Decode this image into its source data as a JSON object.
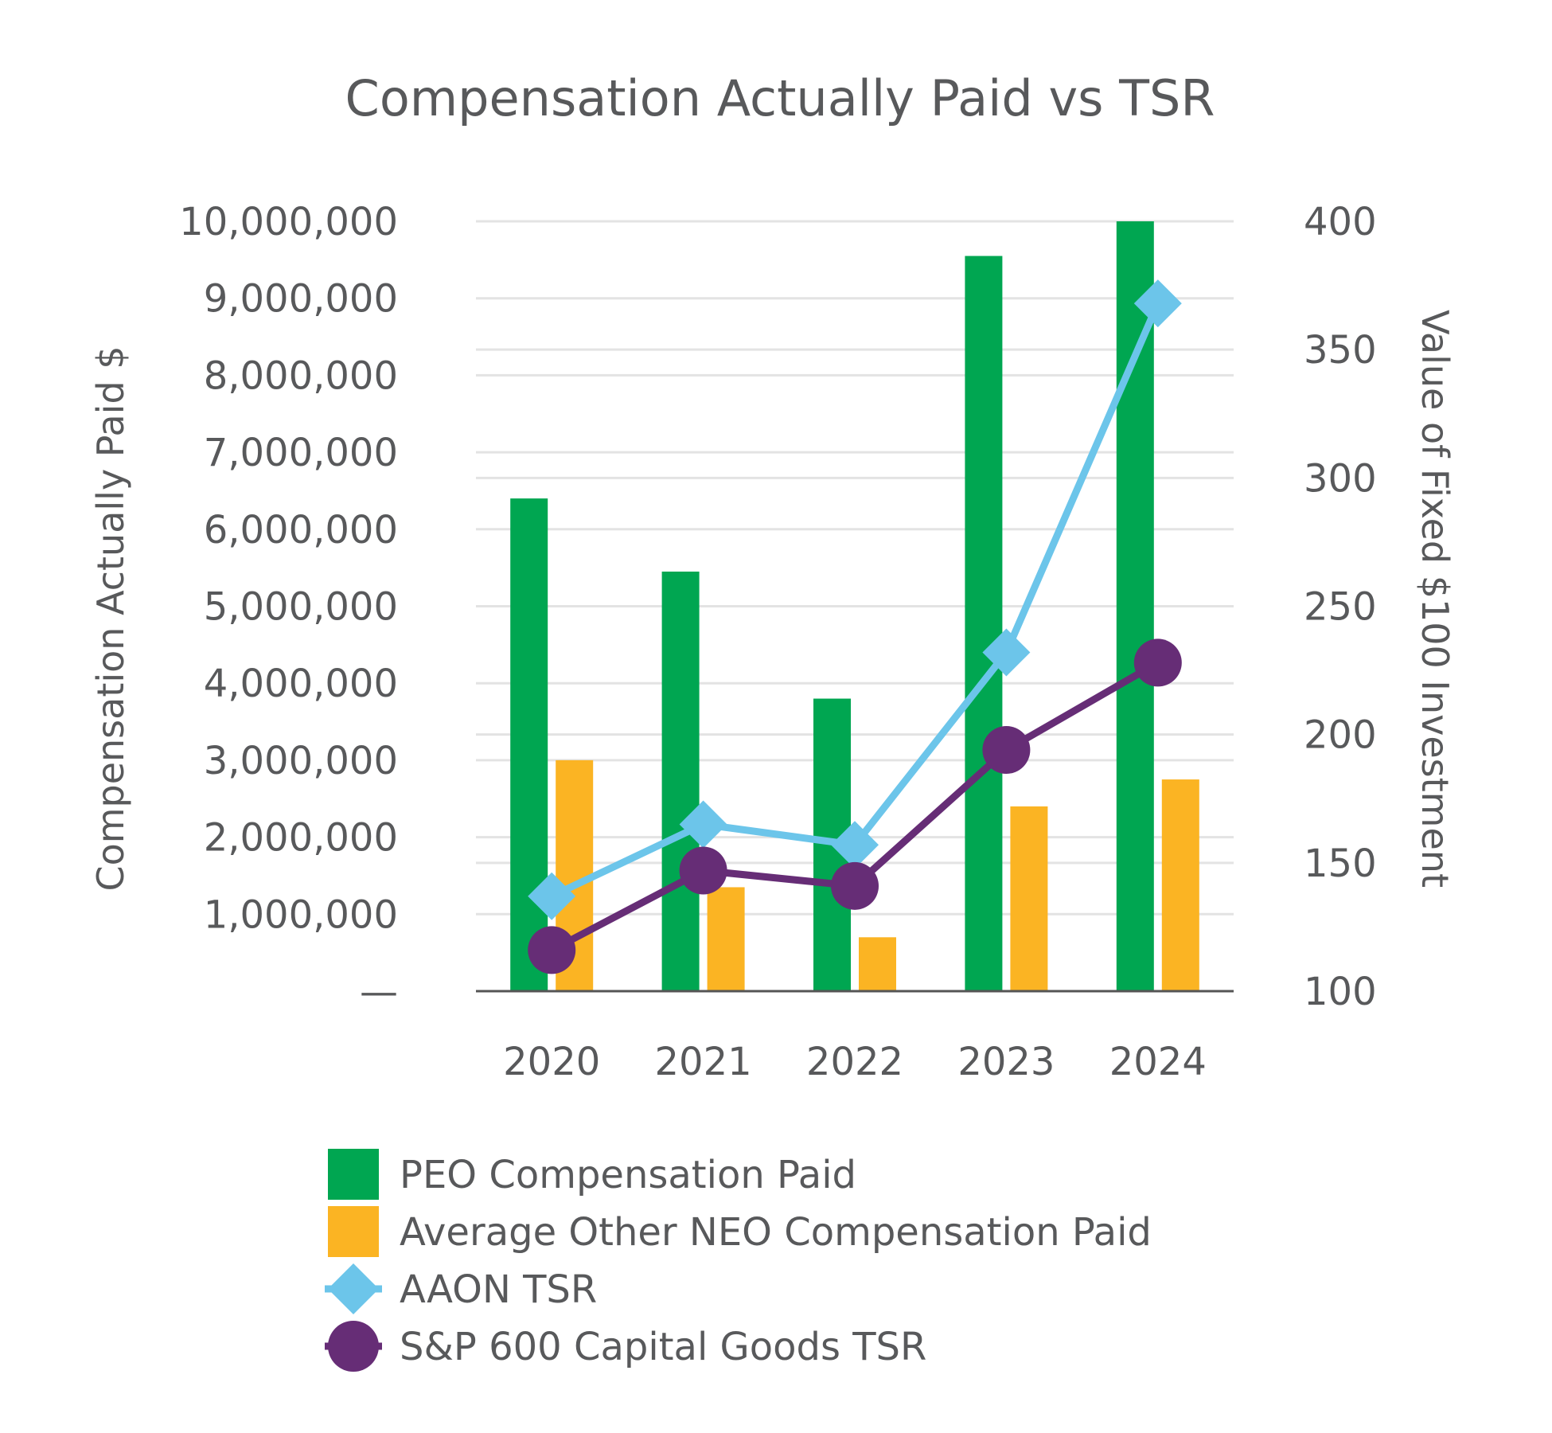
{
  "chart_data": {
    "type": "bar",
    "title": "Compensation Actually Paid vs TSR",
    "categories": [
      "2020",
      "2021",
      "2022",
      "2023",
      "2024"
    ],
    "ylabel": "Compensation Actually Paid $",
    "y2label": "Value of Fixed $100 Investment",
    "ylim": [
      0,
      10000000
    ],
    "y2lim": [
      100,
      400
    ],
    "yticks": [
      "—",
      "1,000,000",
      "2,000,000",
      "3,000,000",
      "4,000,000",
      "5,000,000",
      "6,000,000",
      "7,000,000",
      "8,000,000",
      "9,000,000",
      "10,000,000"
    ],
    "y2ticks": [
      "100",
      "150",
      "200",
      "250",
      "300",
      "350",
      "400"
    ],
    "grid": true,
    "legend_position": "bottom",
    "series": [
      {
        "name": "PEO Compensation Paid",
        "kind": "bar",
        "axis": "left",
        "color": "#00a651",
        "values": [
          6400000,
          5450000,
          3800000,
          9550000,
          10000000
        ]
      },
      {
        "name": "Average Other NEO Compensation Paid",
        "kind": "bar",
        "axis": "left",
        "color": "#fbb423",
        "values": [
          3000000,
          1350000,
          700000,
          2400000,
          2750000
        ]
      },
      {
        "name": "AAON TSR",
        "kind": "line",
        "marker": "diamond",
        "axis": "right",
        "color": "#6cc5ea",
        "values": [
          137,
          165,
          157,
          232,
          368
        ]
      },
      {
        "name": "S&P 600 Capital Goods TSR",
        "kind": "line",
        "marker": "circle",
        "axis": "right",
        "color": "#662d76",
        "values": [
          116,
          147,
          141,
          194,
          228
        ]
      }
    ]
  }
}
